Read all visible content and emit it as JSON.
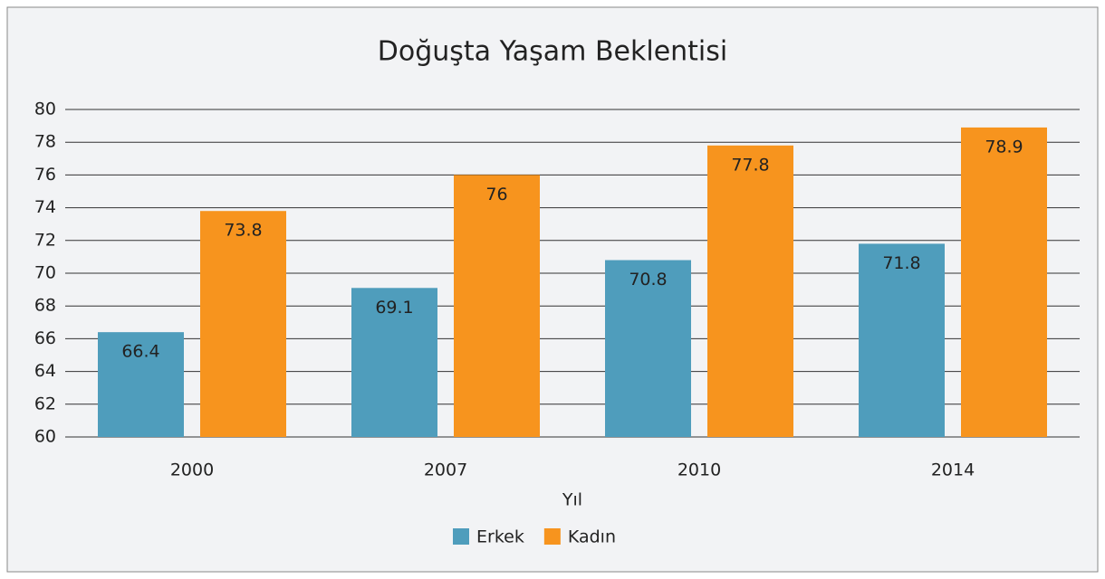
{
  "chart_data": {
    "type": "bar",
    "title": "Doğuşta Yaşam Beklentisi",
    "x_label": "Yıl",
    "categories": [
      "2000",
      "2007",
      "2010",
      "2014"
    ],
    "series": [
      {
        "name": "Erkek",
        "color": "#4f9dbc",
        "values": [
          66.4,
          69.1,
          70.8,
          71.8
        ]
      },
      {
        "name": "Kadın",
        "color": "#f7941e",
        "values": [
          73.8,
          76,
          77.8,
          78.9
        ]
      }
    ],
    "ylim": [
      60,
      80
    ],
    "yticks": [
      60,
      62,
      64,
      66,
      68,
      70,
      72,
      74,
      76,
      78,
      80
    ],
    "grid": true,
    "legend": "bottom"
  }
}
